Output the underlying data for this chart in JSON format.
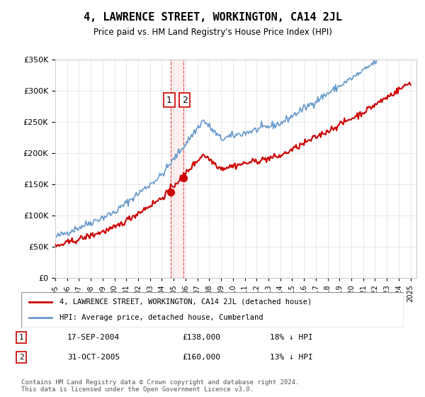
{
  "title": "4, LAWRENCE STREET, WORKINGTON, CA14 2JL",
  "subtitle": "Price paid vs. HM Land Registry's House Price Index (HPI)",
  "legend_line1": "4, LAWRENCE STREET, WORKINGTON, CA14 2JL (detached house)",
  "legend_line2": "HPI: Average price, detached house, Cumberland",
  "transaction1_date": "17-SEP-2004",
  "transaction1_price": "£138,000",
  "transaction1_hpi": "18% ↓ HPI",
  "transaction2_date": "31-OCT-2005",
  "transaction2_price": "£160,000",
  "transaction2_hpi": "13% ↓ HPI",
  "footer": "Contains HM Land Registry data © Crown copyright and database right 2024.\nThis data is licensed under the Open Government Licence v3.0.",
  "red_color": "#cc0000",
  "blue_color": "#6699cc",
  "ylim_min": 0,
  "ylim_max": 350000,
  "transaction1_x": 2004.72,
  "transaction2_x": 2005.83,
  "background_color": "#ffffff",
  "plot_bg_color": "#ffffff",
  "grid_color": "#dddddd"
}
